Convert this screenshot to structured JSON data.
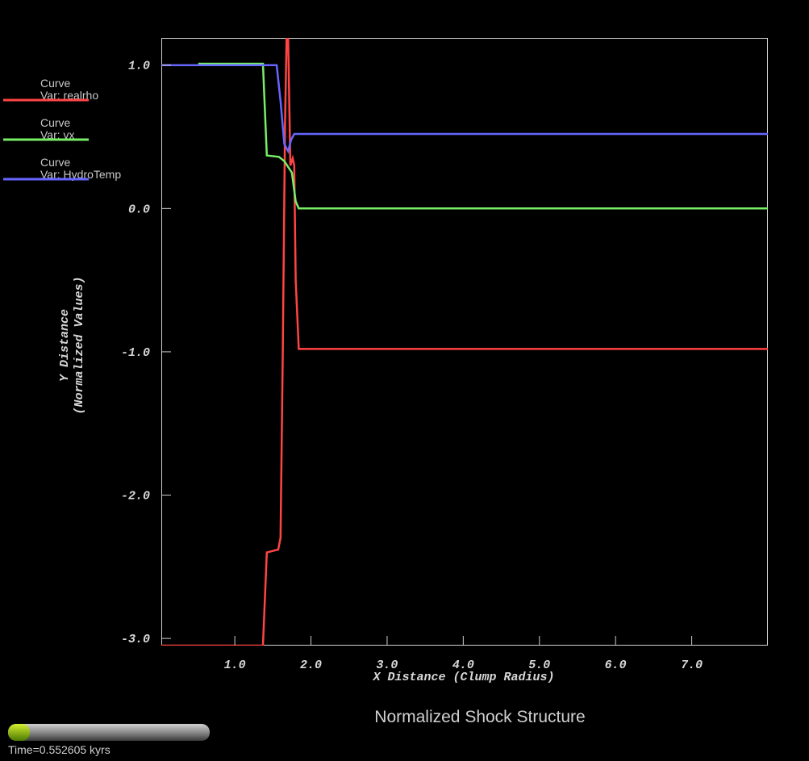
{
  "chart_data": {
    "type": "line",
    "title": "Normalized Shock Structure",
    "x_label": "X Distance (Clump Radius)",
    "y_label": [
      "Y Distance",
      "(Normalized Values)"
    ],
    "time_label": "Time=0.552605 kyrs",
    "xlim": [
      0.035,
      8.0
    ],
    "ylim": [
      -3.05,
      1.19
    ],
    "xticks": [
      {
        "value": 1,
        "label": "1.0"
      },
      {
        "value": 2,
        "label": "2.0"
      },
      {
        "value": 3,
        "label": "3.0"
      },
      {
        "value": 4,
        "label": "4.0"
      },
      {
        "value": 5,
        "label": "5.0"
      },
      {
        "value": 6,
        "label": "6.0"
      },
      {
        "value": 7,
        "label": "7.0"
      }
    ],
    "yticks": [
      {
        "value": 1,
        "label": "1.0"
      },
      {
        "value": 0,
        "label": "0.0"
      },
      {
        "value": -1,
        "label": "-1.0"
      },
      {
        "value": -2,
        "label": "-2.0"
      },
      {
        "value": -3,
        "label": "-3.0"
      }
    ],
    "series": [
      {
        "label": "Curve",
        "name": "Var: realrho",
        "color": "#ff4444",
        "x": [
          0.035,
          1.37,
          1.42,
          1.57,
          1.6,
          1.63,
          1.66,
          1.68,
          1.7,
          1.73,
          1.76,
          1.78,
          1.8,
          1.84,
          8.0
        ],
        "values": [
          -3.05,
          -3.05,
          -2.4,
          -2.38,
          -2.3,
          -1.0,
          0.6,
          1.19,
          1.2,
          0.3,
          0.35,
          0.3,
          -0.5,
          -0.98,
          -0.98
        ]
      },
      {
        "label": "Curve",
        "name": "Var: vx",
        "color": "#77ee66",
        "x": [
          0.52,
          1.37,
          1.42,
          1.58,
          1.65,
          1.75,
          1.8,
          1.84,
          8.0
        ],
        "values": [
          1.01,
          1.01,
          0.37,
          0.36,
          0.33,
          0.25,
          0.05,
          0.0,
          0.0
        ]
      },
      {
        "label": "Curve",
        "name": "Var: HydroTemp",
        "color": "#6666ff",
        "x": [
          0.035,
          1.55,
          1.6,
          1.65,
          1.7,
          1.74,
          1.78,
          8.0
        ],
        "values": [
          1.0,
          1.0,
          0.75,
          0.45,
          0.4,
          0.48,
          0.52,
          0.52
        ]
      }
    ]
  }
}
